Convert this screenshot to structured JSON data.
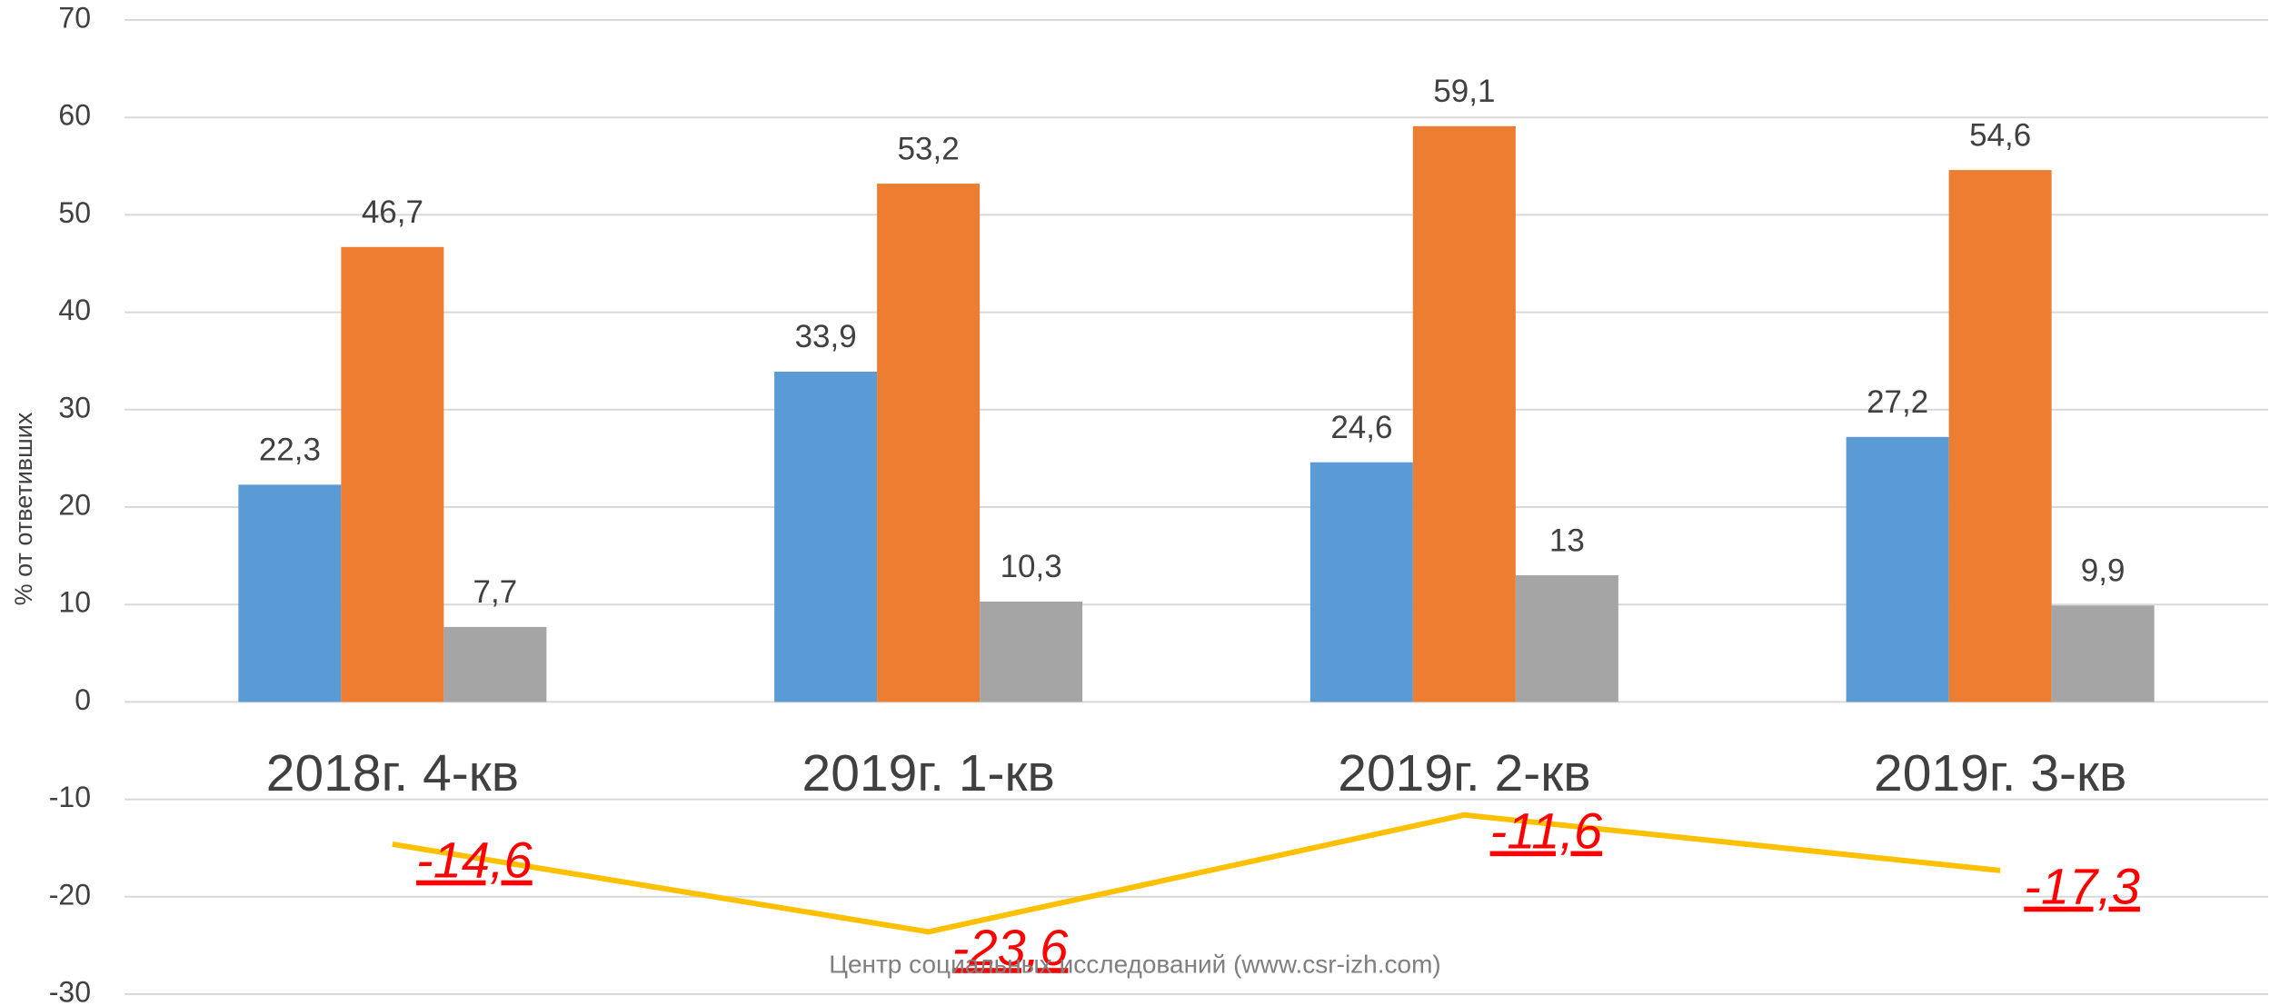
{
  "chart_data": {
    "type": "bar",
    "categories": [
      "2018г. 4-кв",
      "2019г. 1-кв",
      "2019г. 2-кв",
      "2019г. 3-кв"
    ],
    "series": [
      {
        "color": "#5b9bd5",
        "values": [
          22.3,
          33.9,
          24.6,
          27.2
        ],
        "value_labels": [
          "22,3",
          "33,9",
          "24,6",
          "27,2"
        ]
      },
      {
        "color": "#ed7d31",
        "values": [
          46.7,
          53.2,
          59.1,
          54.6
        ],
        "value_labels": [
          "46,7",
          "53,2",
          "59,1",
          "54,6"
        ]
      },
      {
        "color": "#a5a5a5",
        "values": [
          7.7,
          10.3,
          13,
          9.9
        ],
        "value_labels": [
          "7,7",
          "10,3",
          "13",
          "9,9"
        ]
      },
      {
        "type": "line",
        "color": "#ffc000",
        "label_color": "#ff0000",
        "values": [
          -14.6,
          -23.6,
          -11.6,
          -17.3
        ],
        "value_labels": [
          "-14,6",
          "-23,6",
          "-11,6",
          "-17,3"
        ]
      }
    ],
    "ylabel": "% от ответивших",
    "source": "Центр социальных исследований (www.csr-izh.com)",
    "ylim": [
      -30,
      70
    ],
    "yticks": [
      -30,
      -20,
      -10,
      0,
      10,
      20,
      30,
      40,
      50,
      60,
      70
    ],
    "grid": true
  }
}
